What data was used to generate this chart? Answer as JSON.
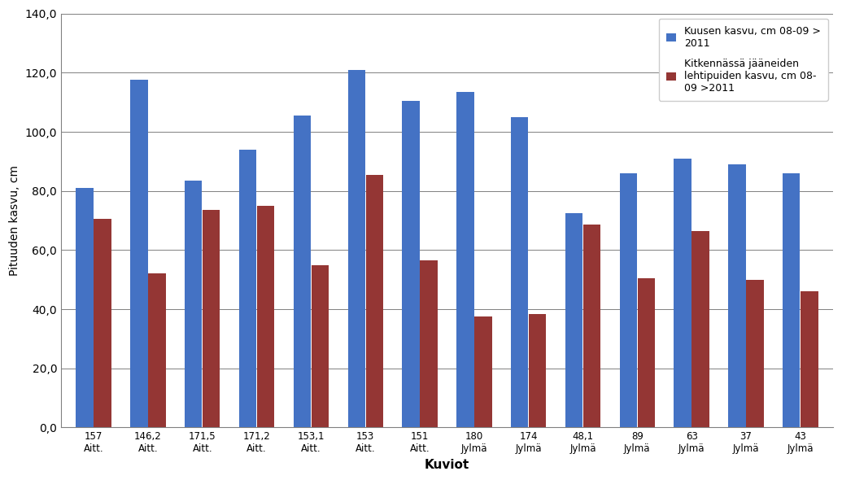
{
  "categories": [
    [
      "157",
      "Aitt."
    ],
    [
      "146,2",
      "Aitt."
    ],
    [
      "171,5",
      "Aitt."
    ],
    [
      "171,2",
      "Aitt."
    ],
    [
      "153,1",
      "Aitt."
    ],
    [
      "153",
      "Aitt."
    ],
    [
      "151",
      "Aitt."
    ],
    [
      "180",
      "Jylmä"
    ],
    [
      "174",
      "Jylmä"
    ],
    [
      "48,1",
      "Jylmä"
    ],
    [
      "89",
      "Jylmä"
    ],
    [
      "63",
      "Jylmä"
    ],
    [
      "37",
      "Jylmä"
    ],
    [
      "43",
      "Jylmä"
    ]
  ],
  "blue_values": [
    81,
    117.5,
    83.5,
    94,
    105.5,
    121,
    110.5,
    113.5,
    105,
    72.5,
    86,
    91,
    89,
    86
  ],
  "red_values": [
    70.5,
    52,
    73.5,
    75,
    55,
    85.5,
    56.5,
    37.5,
    38.5,
    68.5,
    50.5,
    66.5,
    50,
    46
  ],
  "blue_color": "#4472C4",
  "red_color": "#943634",
  "ylabel": "Pituuden kasvu, cm",
  "xlabel": "Kuviot",
  "ylim": [
    0,
    140
  ],
  "yticks": [
    0,
    20,
    40,
    60,
    80,
    100,
    120,
    140
  ],
  "ytick_labels": [
    "0,0",
    "20,0",
    "40,0",
    "60,0",
    "80,0",
    "100,0",
    "120,0",
    "140,0"
  ],
  "legend1": "Kuusen kasvu, cm 08-09 >\n2011",
  "legend2": "Kitkennässä jääneiden\nlehtipuiden kasvu, cm 08-\n09 >2011",
  "background_color": "#ffffff",
  "grid_color": "#808080"
}
